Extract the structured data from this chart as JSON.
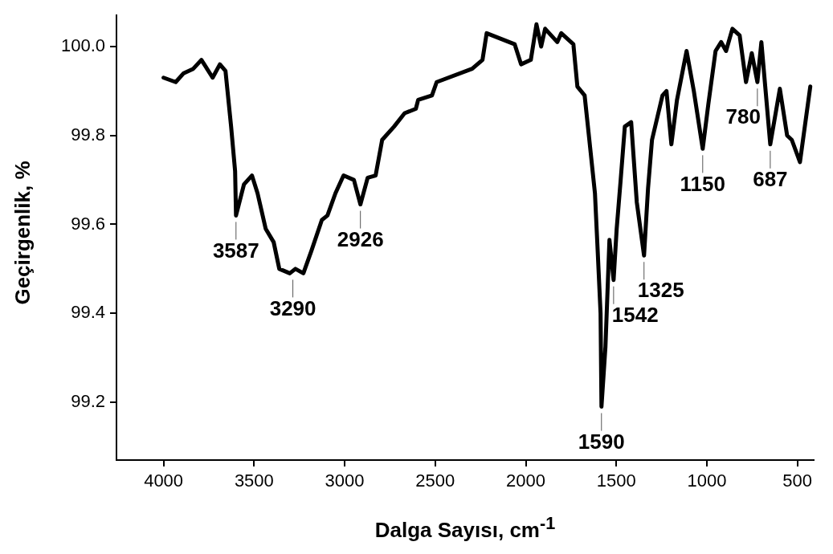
{
  "chart_data": {
    "type": "line",
    "xlabel": "Dalga Sayısı, cm$^{-1}$",
    "ylabel": "Geçirgenlik, %",
    "xlim": [
      4260,
      410
    ],
    "xticks": [
      4000,
      3500,
      3000,
      2500,
      2000,
      1500,
      1000,
      500
    ],
    "ylim": [
      99.07,
      100.07
    ],
    "yticks": [
      99.2,
      99.4,
      99.6,
      99.8,
      {
        "value": 100,
        "label": "100.0"
      }
    ],
    "marker": "none",
    "line_style": "solid",
    "series": [
      {
        "color": "#000000",
        "x": [
          4000,
          3933,
          3889,
          3836,
          3791,
          3729,
          3689,
          3658,
          3627,
          3605,
          3600,
          3556,
          3512,
          3481,
          3436,
          3392,
          3361,
          3303,
          3272,
          3228,
          3184,
          3126,
          3095,
          3051,
          3006,
          2949,
          2913,
          2873,
          2829,
          2793,
          2727,
          2669,
          2607,
          2594,
          2518,
          2492,
          2296,
          2239,
          2216,
          2061,
          2026,
          1972,
          1941,
          1915,
          1893,
          1826,
          1804,
          1737,
          1715,
          1675,
          1649,
          1618,
          1604,
          1587,
          1582,
          1560,
          1538,
          1515,
          1498,
          1476,
          1453,
          1418,
          1387,
          1347,
          1325,
          1303,
          1245,
          1223,
          1196,
          1165,
          1112,
          1072,
          1023,
          992,
          952,
          921,
          894,
          859,
          819,
          784,
          752,
          721,
          699,
          650,
          597,
          557,
          531,
          486,
          429
        ],
        "values": [
          99.93,
          99.92,
          99.94,
          99.95,
          99.97,
          99.93,
          99.96,
          99.945,
          99.82,
          99.72,
          99.62,
          99.69,
          99.71,
          99.67,
          99.59,
          99.56,
          99.5,
          99.49,
          99.5,
          99.49,
          99.54,
          99.61,
          99.62,
          99.67,
          99.71,
          99.7,
          99.645,
          99.705,
          99.71,
          99.79,
          99.82,
          99.85,
          99.86,
          99.88,
          99.89,
          99.92,
          99.95,
          99.97,
          100.03,
          100.005,
          99.96,
          99.97,
          100.05,
          100.0,
          100.04,
          100.01,
          100.03,
          100.005,
          99.91,
          99.89,
          99.79,
          99.67,
          99.55,
          99.4,
          99.19,
          99.325,
          99.565,
          99.475,
          99.59,
          99.7,
          99.82,
          99.83,
          99.65,
          99.53,
          99.68,
          99.79,
          99.89,
          99.9,
          99.78,
          99.88,
          99.99,
          99.9,
          99.77,
          99.87,
          99.99,
          100.01,
          99.99,
          100.04,
          100.025,
          99.92,
          99.985,
          99.92,
          100.01,
          99.78,
          99.905,
          99.8,
          99.79,
          99.74,
          99.91
        ]
      }
    ],
    "annotations": [
      {
        "text": "3587",
        "x": 3600,
        "y": 99.62
      },
      {
        "text": "3290",
        "x": 3286,
        "y": 99.49
      },
      {
        "text": "2926",
        "x": 2913,
        "y": 99.645
      },
      {
        "text": "1590",
        "x": 1582,
        "y": 99.19
      },
      {
        "text": "1542",
        "x": 1515,
        "y": 99.475
      },
      {
        "text": "1325",
        "x": 1347,
        "y": 99.53
      },
      {
        "text": "1150",
        "x": 1023,
        "y": 99.77
      },
      {
        "text": "780",
        "x": 721,
        "y": 99.92
      },
      {
        "text": "687",
        "x": 650,
        "y": 99.78
      }
    ]
  }
}
